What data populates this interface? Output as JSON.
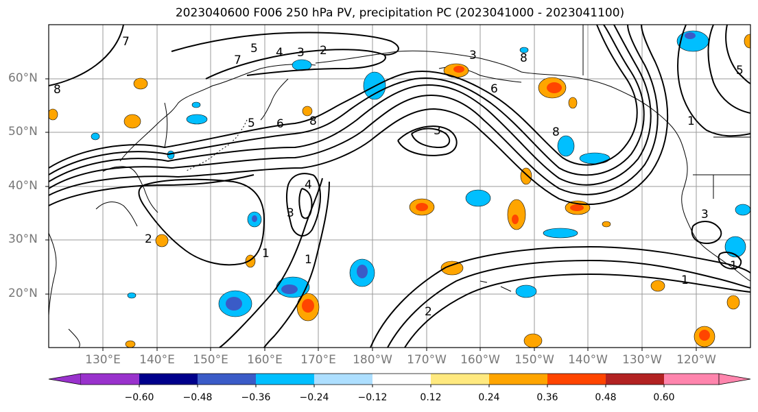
{
  "title": "2023040600 F006 250 hPa PV, precipitation PC (2023041000 - 2023041100)",
  "lat_labels": [
    "60°N",
    "50°N",
    "40°N",
    "30°N",
    "20°N"
  ],
  "lon_labels": [
    "130°E",
    "140°E",
    "150°E",
    "160°E",
    "170°E",
    "180°W",
    "170°W",
    "160°W",
    "150°W",
    "140°W",
    "130°W",
    "120°W"
  ],
  "colorbar": {
    "colors": [
      "#9932CC",
      "#00008B",
      "#3A5BC7",
      "#00BFFF",
      "#ADDFFF",
      "#FFFFFF",
      "#FFE97F",
      "#FFA500",
      "#FF4500",
      "#B22222",
      "#FF85AD"
    ],
    "ticks": [
      "−0.60",
      "−0.48",
      "−0.36",
      "−0.24",
      "−0.12",
      "0.12",
      "0.24",
      "0.36",
      "0.48",
      "0.60"
    ]
  },
  "contour_labels": [
    "7",
    "5",
    "4",
    "3",
    "2",
    "7",
    "6",
    "5",
    "8",
    "8",
    "8",
    "3",
    "6",
    "8",
    "3",
    "4",
    "3",
    "1",
    "1",
    "2",
    "1",
    "2",
    "3",
    "1",
    "1",
    "5"
  ]
}
